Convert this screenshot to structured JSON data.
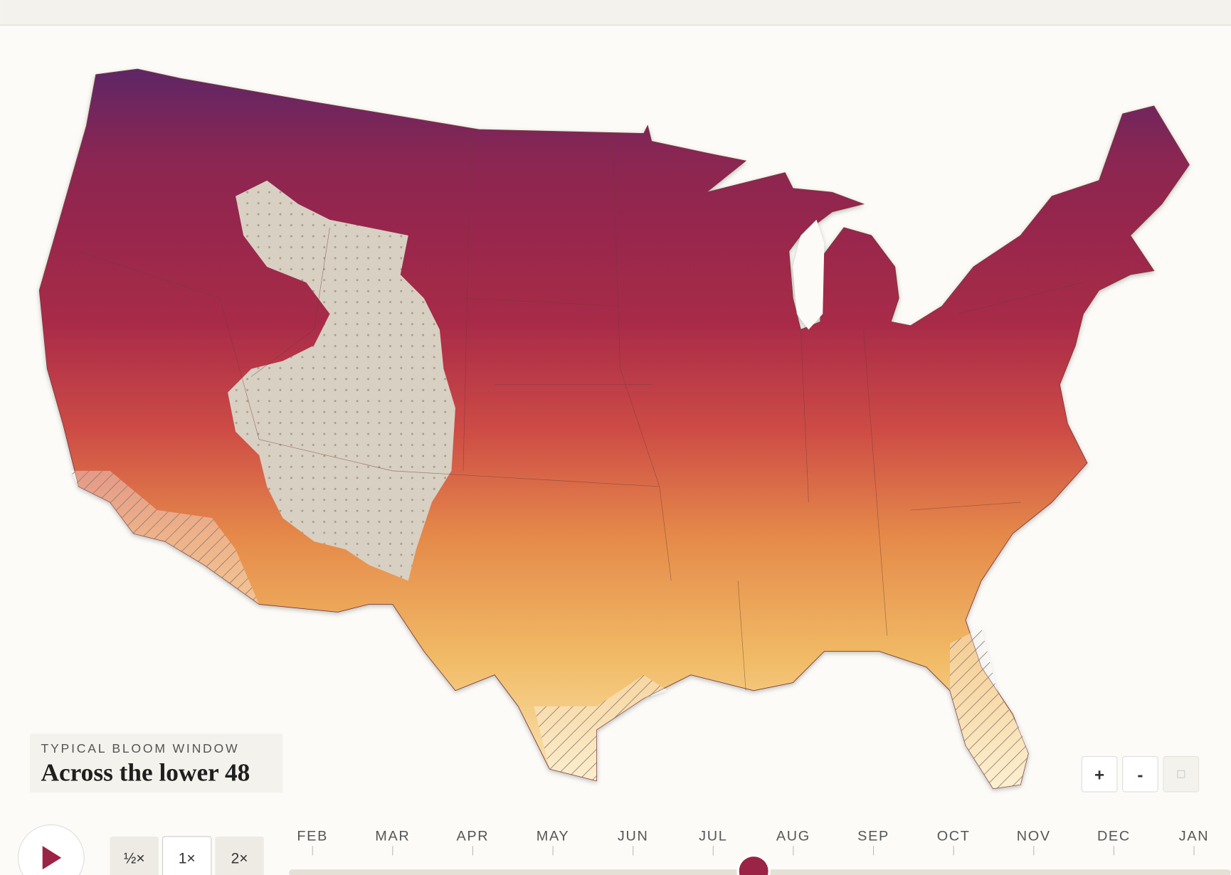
{
  "header": {
    "kicker": "TYPICAL BLOOM WINDOW",
    "title": "Across the lower 48"
  },
  "speed_buttons": [
    "½×",
    "1×",
    "2×"
  ],
  "zoom_buttons": [
    "+",
    "-"
  ],
  "timeline": {
    "months": [
      "FEB",
      "MAR",
      "APR",
      "MAY",
      "JUN",
      "JUL",
      "AUG",
      "SEP",
      "OCT",
      "NOV",
      "DEC",
      "JAN"
    ]
  }
}
